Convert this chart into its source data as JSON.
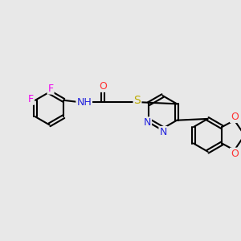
{
  "background_color": "#e8e8e8",
  "bond_color": "#000000",
  "bond_width": 1.5,
  "atom_colors": {
    "F": "#ee00ee",
    "O": "#ff3333",
    "N": "#2222dd",
    "S": "#bbaa00",
    "H": "#000000",
    "C": "#000000"
  },
  "font_size": 9,
  "fig_width": 3.0,
  "fig_height": 3.0
}
